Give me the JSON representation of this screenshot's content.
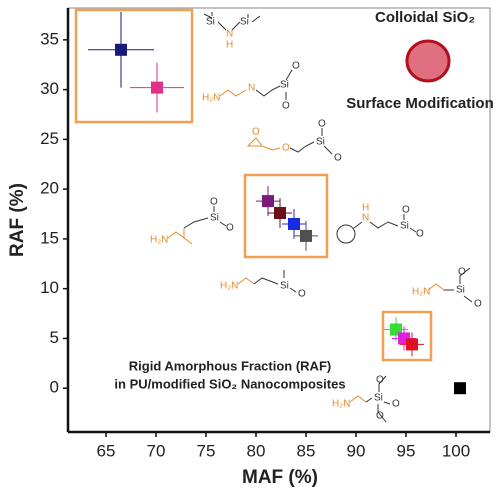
{
  "chart_data": {
    "type": "scatter",
    "x_label": "MAF (%)",
    "y_label": "RAF (%)",
    "annotations": [
      "Colloidal SiO₂",
      "Surface Modification",
      "Rigid Amorphous Fraction (RAF)",
      "in PU/modified SiO₂ Nanocomposites"
    ],
    "x": [
      66.5,
      70.1,
      81.2,
      82.4,
      83.8,
      85.0,
      94.0,
      94.8,
      95.6,
      100.4
    ],
    "values": [
      34.0,
      30.2,
      18.8,
      17.6,
      16.5,
      15.3,
      5.9,
      5.0,
      4.4,
      0.0
    ],
    "xerr": [
      3.3,
      2.7,
      1.2,
      1.2,
      1.2,
      1.2,
      1.2,
      1.2,
      1.2,
      null
    ],
    "yerr": [
      3.8,
      2.5,
      1.5,
      1.5,
      1.5,
      1.5,
      1.2,
      1.2,
      1.2,
      null
    ],
    "colors": [
      "#1a1a7a",
      "#e0308a",
      "#7a1a7a",
      "#6a0f1a",
      "#1a2ae0",
      "#505050",
      "#33dd33",
      "#e020e0",
      "#e01020",
      "#000000"
    ],
    "xlim": [
      61.2,
      103.4
    ],
    "ylim": [
      -4.4,
      38.2
    ],
    "xticks": [
      65,
      70,
      75,
      80,
      85,
      90,
      95,
      100
    ],
    "yticks": [
      0,
      5,
      10,
      15,
      20,
      25,
      30,
      35
    ],
    "structure_labels": [
      [
        "Si",
        "N",
        "Si",
        "H"
      ],
      [
        "H₂N",
        "N",
        "Si",
        "O",
        "O"
      ],
      [
        "O",
        "O",
        "Si",
        "O",
        "O"
      ],
      [
        "H₂N",
        "Si",
        "O",
        "O"
      ],
      [
        "H₂N",
        "Si",
        "O"
      ],
      [
        "N",
        "H",
        "Si",
        "O",
        "O"
      ],
      [
        "H₂N",
        "Si",
        "O",
        "O"
      ],
      [
        "H₂N",
        "Si",
        "O",
        "O",
        "O"
      ]
    ]
  }
}
